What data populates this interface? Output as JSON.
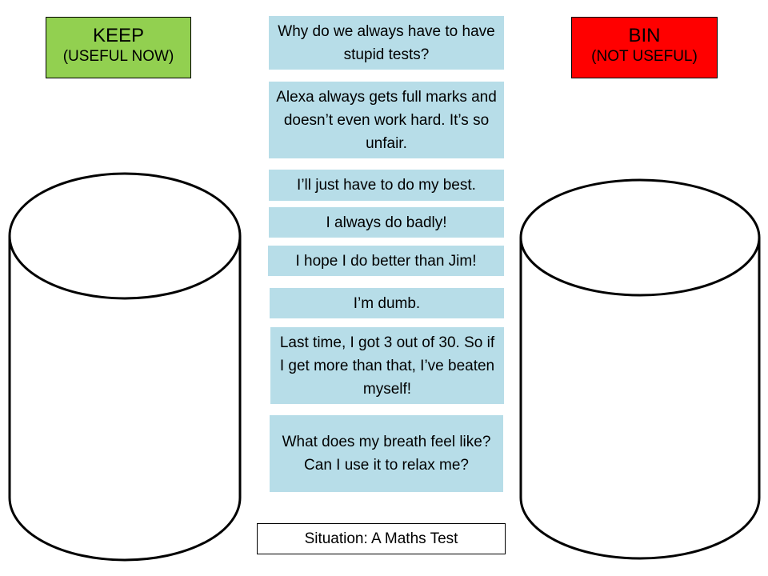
{
  "keep": {
    "title": "KEEP",
    "subtitle": "(USEFUL NOW)",
    "color": "#92d050"
  },
  "bin": {
    "title": "BIN",
    "subtitle": "(NOT USEFUL)",
    "color": "#ff0000"
  },
  "cards": [
    "Why do we always have to have stupid tests?",
    "Alexa always gets full marks and doesn’t even work hard. It’s so unfair.",
    "I’ll just have to do my best.",
    "I always do badly!",
    "I hope I do better than Jim!",
    "I’m dumb.",
    "Last time, I got 3 out of 30. So if I get more than that, I’ve beaten myself!",
    "What does my breath feel like? Can I use it to relax me?"
  ],
  "situation": "Situation: A Maths Test",
  "card_color": "#b7dde8"
}
